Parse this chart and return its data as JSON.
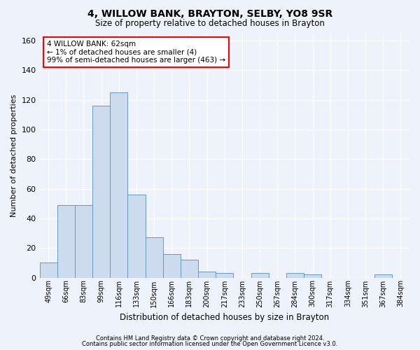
{
  "title": "4, WILLOW BANK, BRAYTON, SELBY, YO8 9SR",
  "subtitle": "Size of property relative to detached houses in Brayton",
  "xlabel": "Distribution of detached houses by size in Brayton",
  "ylabel": "Number of detached properties",
  "bar_color": "#ccdcee",
  "bar_edge_color": "#6699bb",
  "background_color": "#eef2fa",
  "grid_color": "#ffffff",
  "categories": [
    "49sqm",
    "66sqm",
    "83sqm",
    "99sqm",
    "116sqm",
    "133sqm",
    "150sqm",
    "166sqm",
    "183sqm",
    "200sqm",
    "217sqm",
    "233sqm",
    "250sqm",
    "267sqm",
    "284sqm",
    "300sqm",
    "317sqm",
    "334sqm",
    "351sqm",
    "367sqm",
    "384sqm"
  ],
  "values": [
    10,
    49,
    49,
    116,
    125,
    56,
    27,
    16,
    12,
    4,
    3,
    0,
    3,
    0,
    3,
    2,
    0,
    0,
    0,
    2,
    0
  ],
  "ylim": [
    0,
    165
  ],
  "yticks": [
    0,
    20,
    40,
    60,
    80,
    100,
    120,
    140,
    160
  ],
  "annotation_text": "4 WILLOW BANK: 62sqm\n← 1% of detached houses are smaller (4)\n99% of semi-detached houses are larger (463) →",
  "footnote1": "Contains HM Land Registry data © Crown copyright and database right 2024.",
  "footnote2": "Contains public sector information licensed under the Open Government Licence v3.0."
}
